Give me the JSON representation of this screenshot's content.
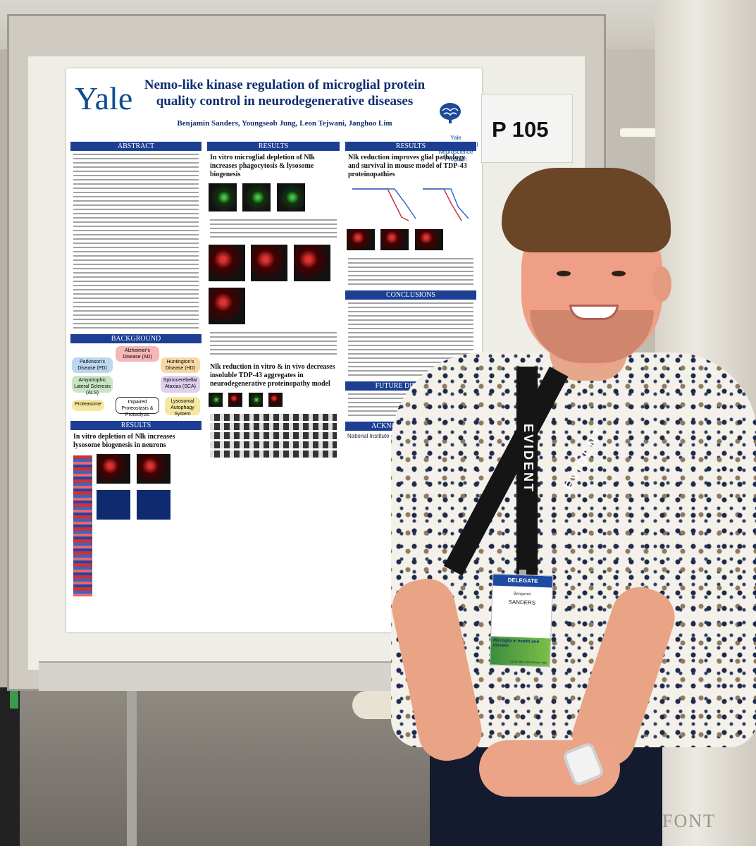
{
  "poster": {
    "logo": "Yale",
    "title": "Nemo-like kinase regulation of microglial protein quality control in neurodegenerative diseases",
    "authors": "Benjamin Sanders, Youngseob Jung, Leon Tejwani, Janghoo Lim",
    "program": "Yale Interdepartmental Neuroscience Program",
    "sections": {
      "abstract": "ABSTRACT",
      "results": "RESULTS",
      "background": "BACKGROUND",
      "conclusions": "CONCLUSIONS",
      "future": "FUTURE DIRECTIONS",
      "acknowledgements": "ACKNOWLEDGEMENTS"
    },
    "headings": {
      "col2_top": "In vitro microglial depletion of Nlk increases phagocytosis & lysosome biogenesis",
      "col3_top": "Nlk reduction improves glial pathology and survival in mouse model of TDP-43 proteinopathies",
      "col1_bottom": "In vitro depletion of Nlk increases lysosome biogenesis in neurons",
      "col2_bottom": "Nlk reduction in vitro & in vivo decreases insoluble TDP-43 aggregates in neurodegenerative proteinopathy model"
    },
    "diagram": {
      "ad": "Alzheimer's Disease (AD)",
      "pd": "Parkinson's Disease (PD)",
      "hd": "Huntington's Disease (HD)",
      "als": "Amyotrophic Lateral Sclerosis (ALS)",
      "sca": "Spinocerebellar Ataxias (SCA)",
      "proteasome": "Proteasome",
      "impaired": "Impaired Proteostasis & Proteolysis",
      "lysosomal": "Lysosomal Autophagy System"
    },
    "nih": "National Institute on Aging"
  },
  "sign": {
    "label": "P 105"
  },
  "badge": {
    "role": "DELEGATE",
    "first_name": "Benjamin",
    "last_name": "SANDERS",
    "event": "Microglia in health and disease",
    "date": "21-24 May 2024 Genoa, Italy"
  },
  "lanyard": {
    "brand": "EVIDENT"
  }
}
